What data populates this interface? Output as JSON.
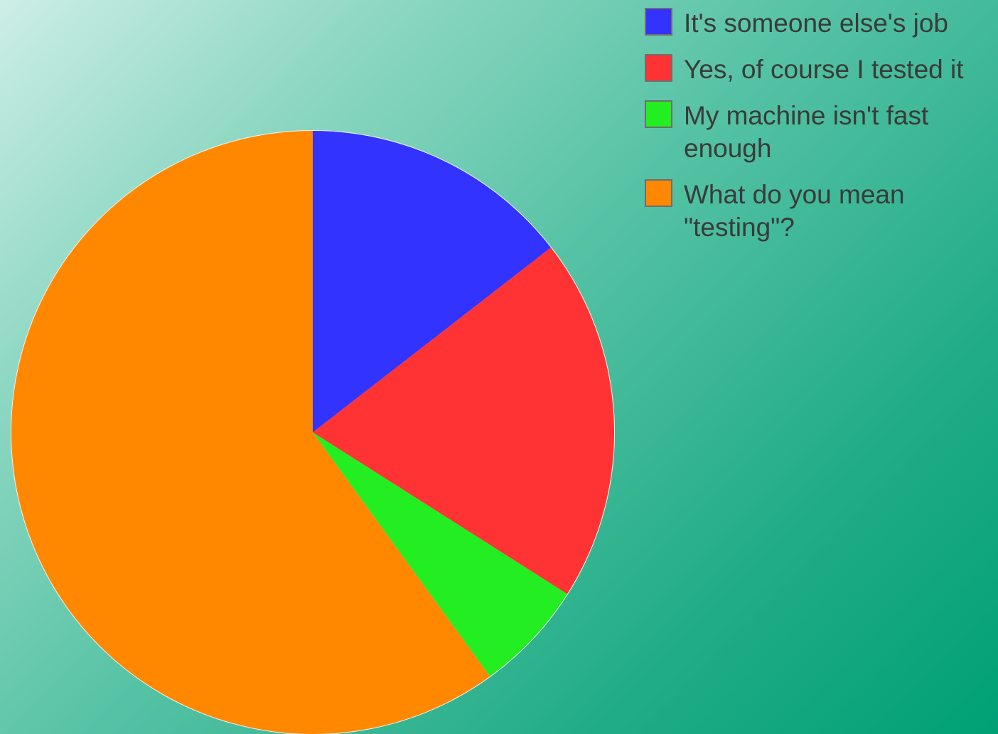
{
  "chart_data": {
    "type": "pie",
    "title": "",
    "start_angle_deg": 0,
    "direction": "clockwise",
    "slices": [
      {
        "label": "It's someone else's job",
        "value": 14.5,
        "color": "#3333ff"
      },
      {
        "label": "Yes, of course I tested it",
        "value": 19.5,
        "color": "#ff3333"
      },
      {
        "label": "My machine isn't fast enough",
        "value": 6.0,
        "color": "#22ee22"
      },
      {
        "label": "What do you mean \"testing\"?",
        "value": 60.0,
        "color": "#ff8800"
      }
    ],
    "legend_position": "top-right"
  }
}
